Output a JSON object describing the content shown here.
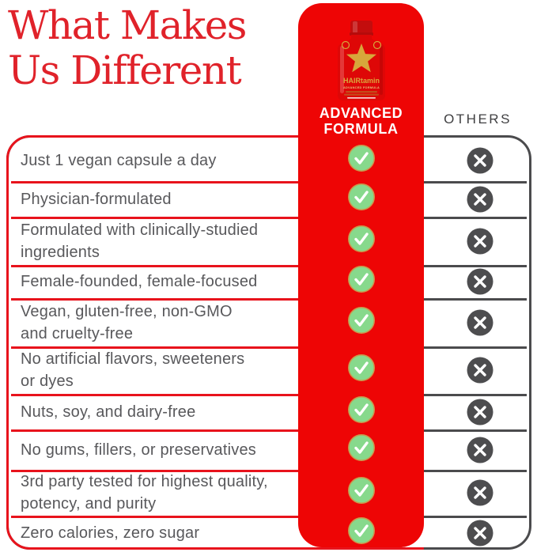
{
  "heading": {
    "line1": "What Makes",
    "line2": "Us Different"
  },
  "brand_column": {
    "formula_label": "ADVANCED\nFORMULA",
    "bottle": {
      "brand": "HAIRtamin",
      "subtitle": "ADVANCED FORMULA",
      "icon": "star-icon"
    }
  },
  "others_label": "OTHERS",
  "table": {
    "rows": [
      {
        "label": "Just 1 vegan capsule a day",
        "us": "check",
        "others": "x"
      },
      {
        "label": "Physician-formulated",
        "us": "check",
        "others": "x"
      },
      {
        "label": "Formulated with clinically-studied\ningredients",
        "us": "check",
        "others": "x"
      },
      {
        "label": "Female-founded, female-focused",
        "us": "check",
        "others": "x"
      },
      {
        "label": "Vegan, gluten-free, non-GMO\nand cruelty-free",
        "us": "check",
        "others": "x"
      },
      {
        "label": "No artificial flavors, sweeteners\nor dyes",
        "us": "check",
        "others": "x"
      },
      {
        "label": "Nuts, soy, and dairy-free",
        "us": "check",
        "others": "x"
      },
      {
        "label": "No gums, fillers, or preservatives",
        "us": "check",
        "others": "x"
      },
      {
        "label": "3rd party tested for highest quality,\npotency, and purity",
        "us": "check",
        "others": "x"
      },
      {
        "label": "Zero calories, zero sugar",
        "us": "check",
        "others": "x"
      }
    ]
  },
  "colors": {
    "heading_red": "#e0222a",
    "red": "#e8131c",
    "column_red": "#ee0505",
    "bottle_red": "#de0707",
    "cap_red": "#c30d0d",
    "gold": "#d7a63b",
    "gold_light": "#e7c27a",
    "green": "#87d98c",
    "green_ring": "#c89a4e",
    "x_gray": "#4d4d4f",
    "border_gray": "#4b4b4d",
    "text_gray": "#58585b",
    "others_text": "#3f3f41"
  }
}
